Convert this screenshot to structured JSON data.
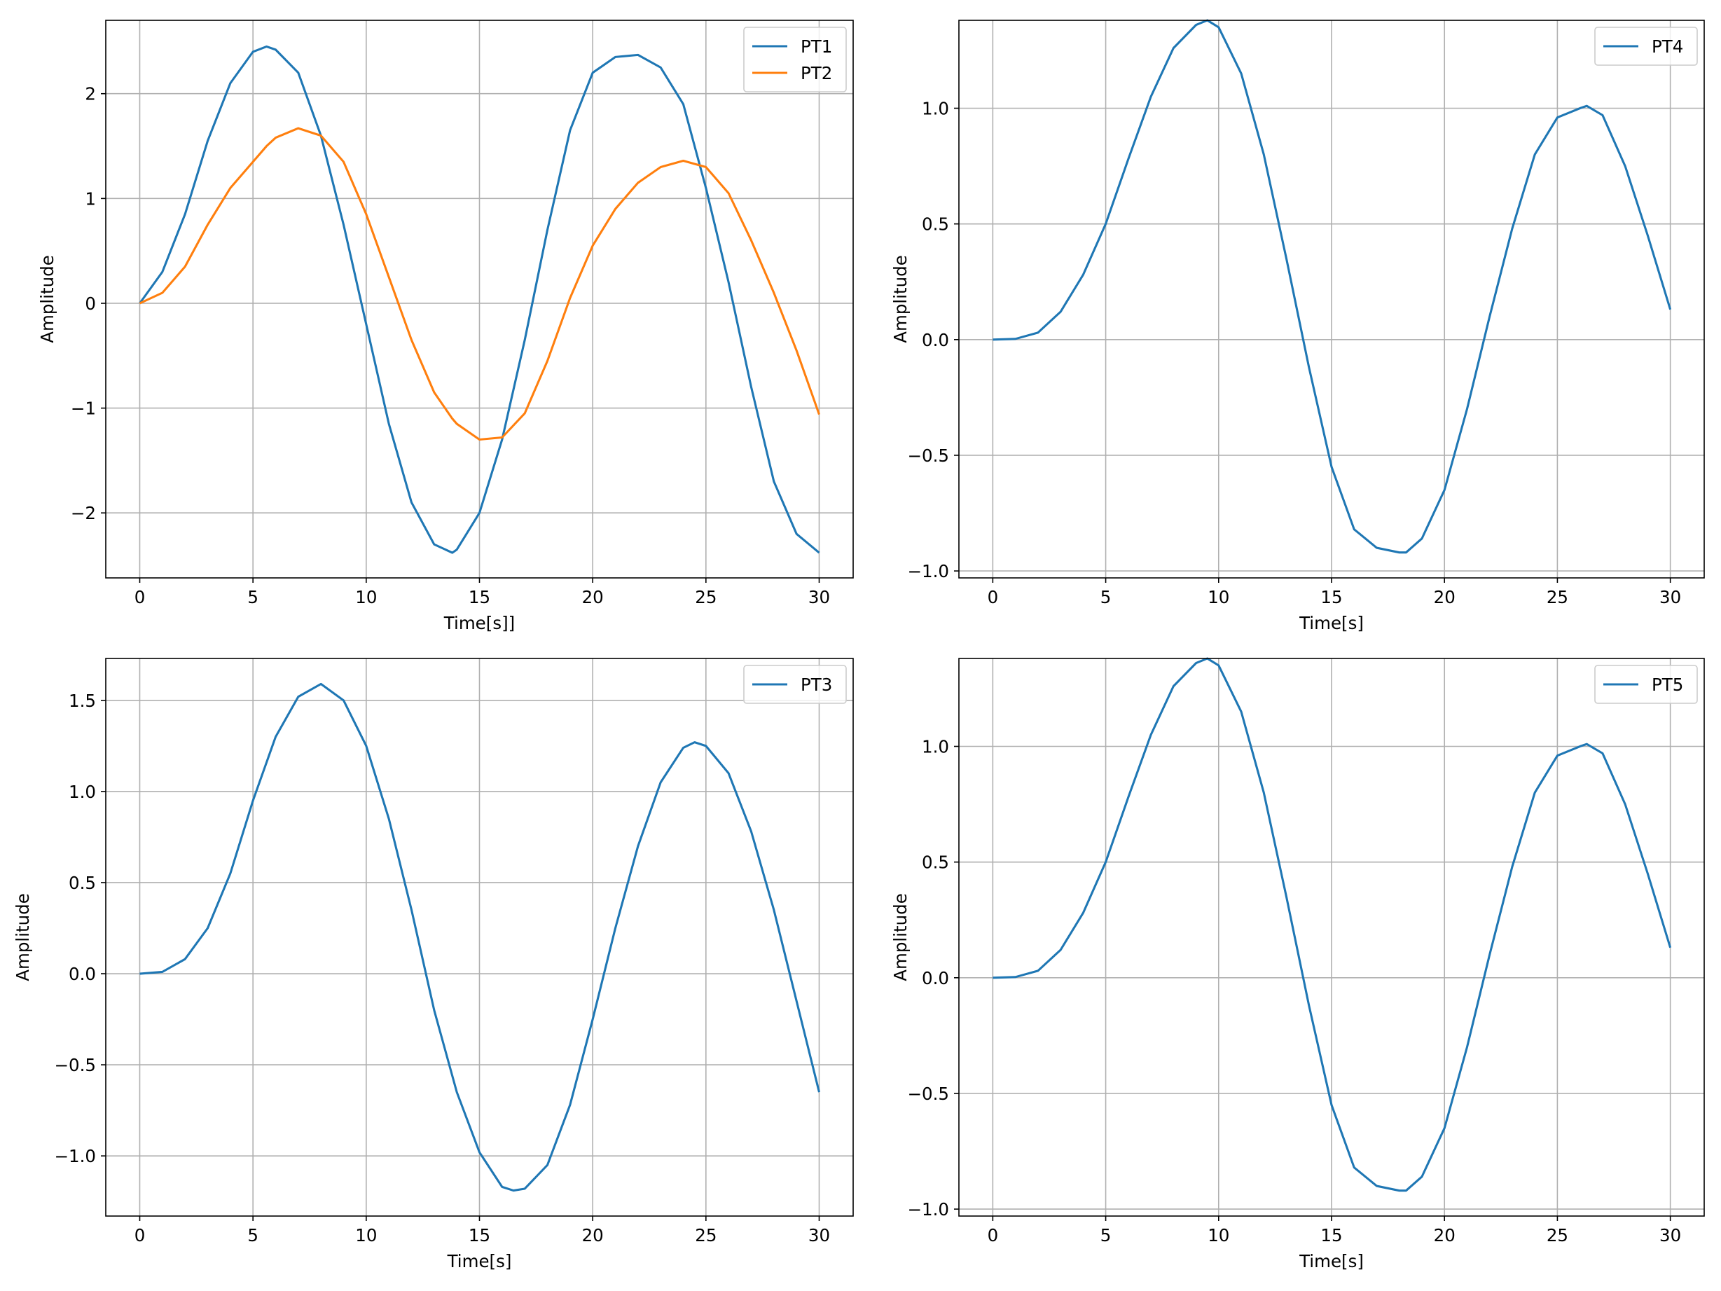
{
  "colors": {
    "series_blue": "#1f77b4",
    "series_orange": "#ff7f0e",
    "grid": "#b0b0b0"
  },
  "chart_data": [
    {
      "type": "line",
      "title": "",
      "xlabel": "Time[s]]",
      "ylabel": "Amplitude",
      "xlim": [
        -1.5,
        31.5
      ],
      "ylim": [
        -2.62,
        2.7
      ],
      "xticks": [
        0,
        5,
        10,
        15,
        20,
        25,
        30
      ],
      "yticks": [
        -2,
        -1,
        0,
        1,
        2
      ],
      "ytick_labels": [
        "−2",
        "−1",
        "0",
        "1",
        "2"
      ],
      "grid": true,
      "legend_position": "upper right",
      "x": [
        0,
        1,
        2,
        3,
        4,
        5,
        5.6,
        6,
        7,
        8,
        9,
        10,
        11,
        12,
        13,
        13.8,
        14,
        15,
        16,
        17,
        18,
        19,
        20,
        21,
        22,
        23,
        24,
        25,
        26,
        27,
        28,
        29,
        30
      ],
      "series": [
        {
          "name": "PT1",
          "color": "#1f77b4",
          "values": [
            0,
            0.3,
            0.85,
            1.55,
            2.1,
            2.4,
            2.45,
            2.42,
            2.2,
            1.6,
            0.75,
            -0.2,
            -1.15,
            -1.9,
            -2.3,
            -2.38,
            -2.35,
            -2.0,
            -1.3,
            -0.35,
            0.7,
            1.65,
            2.2,
            2.35,
            2.37,
            2.25,
            1.9,
            1.1,
            0.2,
            -0.8,
            -1.7,
            -2.2,
            -2.38
          ]
        },
        {
          "name": "PT2",
          "color": "#ff7f0e",
          "values": [
            0,
            0.1,
            0.35,
            0.75,
            1.1,
            1.35,
            1.5,
            1.58,
            1.67,
            1.6,
            1.35,
            0.85,
            0.25,
            -0.35,
            -0.85,
            -1.1,
            -1.15,
            -1.3,
            -1.28,
            -1.05,
            -0.55,
            0.05,
            0.55,
            0.9,
            1.15,
            1.3,
            1.36,
            1.3,
            1.05,
            0.6,
            0.1,
            -0.45,
            -1.06
          ]
        }
      ]
    },
    {
      "type": "line",
      "title": "",
      "xlabel": "Time[s]",
      "ylabel": "Amplitude",
      "xlim": [
        -1.5,
        31.5
      ],
      "ylim": [
        -1.03,
        1.38
      ],
      "xticks": [
        0,
        5,
        10,
        15,
        20,
        25,
        30
      ],
      "yticks": [
        -1.0,
        -0.5,
        0.0,
        0.5,
        1.0
      ],
      "ytick_labels": [
        "−1.0",
        "−0.5",
        "0.0",
        "0.5",
        "1.0"
      ],
      "grid": true,
      "legend_position": "upper right",
      "x": [
        0,
        1,
        2,
        3,
        4,
        5,
        6,
        7,
        8,
        9,
        9.5,
        10,
        11,
        12,
        13,
        14,
        15,
        16,
        17,
        18,
        18.3,
        19,
        20,
        21,
        22,
        23,
        24,
        25,
        26,
        26.3,
        27,
        28,
        29,
        30
      ],
      "series": [
        {
          "name": "PT4",
          "color": "#1f77b4",
          "values": [
            0,
            0.003,
            0.03,
            0.12,
            0.28,
            0.5,
            0.78,
            1.05,
            1.26,
            1.36,
            1.38,
            1.35,
            1.15,
            0.8,
            0.35,
            -0.12,
            -0.55,
            -0.82,
            -0.9,
            -0.92,
            -0.92,
            -0.86,
            -0.65,
            -0.3,
            0.1,
            0.48,
            0.8,
            0.96,
            1.0,
            1.01,
            0.97,
            0.75,
            0.45,
            0.13
          ]
        }
      ]
    },
    {
      "type": "line",
      "title": "",
      "xlabel": "Time[s]",
      "ylabel": "Amplitude",
      "xlim": [
        -1.5,
        31.5
      ],
      "ylim": [
        -1.33,
        1.73
      ],
      "xticks": [
        0,
        5,
        10,
        15,
        20,
        25,
        30
      ],
      "yticks": [
        -1.0,
        -0.5,
        0.0,
        0.5,
        1.0,
        1.5
      ],
      "ytick_labels": [
        "−1.0",
        "−0.5",
        "0.0",
        "0.5",
        "1.0",
        "1.5"
      ],
      "grid": true,
      "legend_position": "upper right",
      "x": [
        0,
        1,
        2,
        3,
        4,
        5,
        6,
        7,
        8,
        9,
        10,
        11,
        12,
        13,
        14,
        15,
        16,
        16.5,
        17,
        18,
        19,
        20,
        21,
        22,
        23,
        24,
        24.5,
        25,
        26,
        27,
        28,
        29,
        30
      ],
      "series": [
        {
          "name": "PT3",
          "color": "#1f77b4",
          "values": [
            0,
            0.01,
            0.08,
            0.25,
            0.55,
            0.95,
            1.3,
            1.52,
            1.59,
            1.5,
            1.25,
            0.85,
            0.35,
            -0.2,
            -0.65,
            -0.98,
            -1.17,
            -1.19,
            -1.18,
            -1.05,
            -0.72,
            -0.25,
            0.25,
            0.7,
            1.05,
            1.24,
            1.27,
            1.25,
            1.1,
            0.78,
            0.35,
            -0.15,
            -0.65
          ]
        }
      ]
    },
    {
      "type": "line",
      "title": "",
      "xlabel": "Time[s]",
      "ylabel": "Amplitude",
      "xlim": [
        -1.5,
        31.5
      ],
      "ylim": [
        -1.03,
        1.38
      ],
      "xticks": [
        0,
        5,
        10,
        15,
        20,
        25,
        30
      ],
      "yticks": [
        -1.0,
        -0.5,
        0.0,
        0.5,
        1.0
      ],
      "ytick_labels": [
        "−1.0",
        "−0.5",
        "0.0",
        "0.5",
        "1.0"
      ],
      "grid": true,
      "legend_position": "upper right",
      "x": [
        0,
        1,
        2,
        3,
        4,
        5,
        6,
        7,
        8,
        9,
        9.5,
        10,
        11,
        12,
        13,
        14,
        15,
        16,
        17,
        18,
        18.3,
        19,
        20,
        21,
        22,
        23,
        24,
        25,
        26,
        26.3,
        27,
        28,
        29,
        30
      ],
      "series": [
        {
          "name": "PT5",
          "color": "#1f77b4",
          "values": [
            0,
            0.003,
            0.03,
            0.12,
            0.28,
            0.5,
            0.78,
            1.05,
            1.26,
            1.36,
            1.38,
            1.35,
            1.15,
            0.8,
            0.35,
            -0.12,
            -0.55,
            -0.82,
            -0.9,
            -0.92,
            -0.92,
            -0.86,
            -0.65,
            -0.3,
            0.1,
            0.48,
            0.8,
            0.96,
            1.0,
            1.01,
            0.97,
            0.75,
            0.45,
            0.13
          ]
        }
      ]
    }
  ]
}
